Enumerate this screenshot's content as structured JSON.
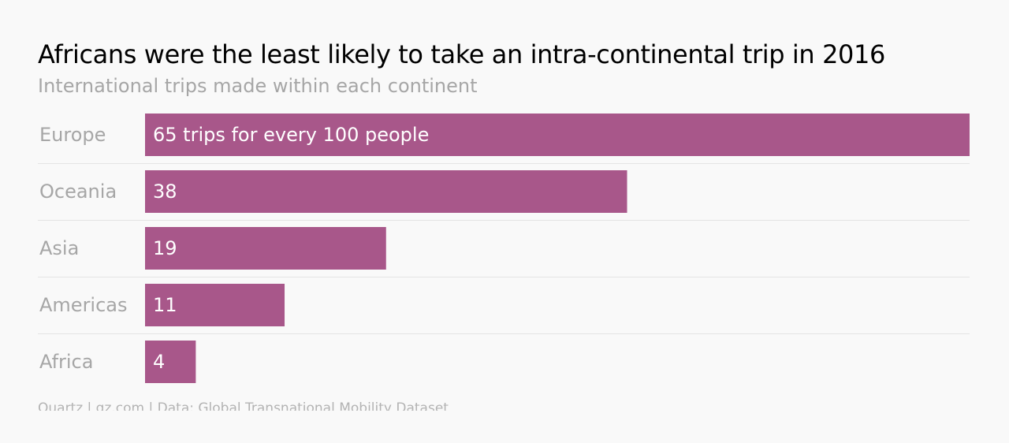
{
  "chart_data": {
    "type": "bar",
    "orientation": "horizontal",
    "title": "Africans were the least likely to take an intra-continental trip in 2016",
    "subtitle": "International trips made within each continent",
    "categories": [
      "Europe",
      "Oceania",
      "Asia",
      "Americas",
      "Africa"
    ],
    "values": [
      65,
      38,
      19,
      11,
      4
    ],
    "data_labels": [
      "65 trips for every 100 people",
      "38",
      "19",
      "11",
      "4"
    ],
    "xlim": [
      0,
      65
    ],
    "grid": "horizontal separators",
    "bar_color": "#a8578a",
    "footer": "Quartz | qz.com | Data: Global Transnational Mobility Dataset"
  }
}
